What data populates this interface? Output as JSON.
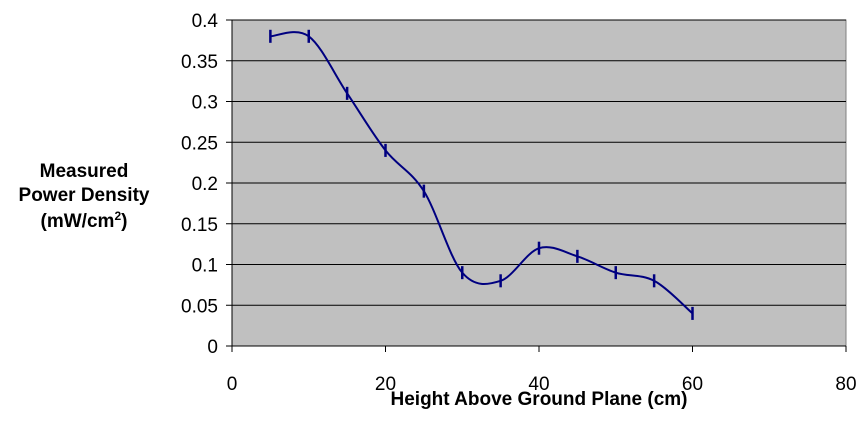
{
  "chart_data": {
    "type": "line",
    "xlabel": "Height Above Ground Plane (cm)",
    "ylabel": {
      "line1": "Measured",
      "line2": "Power Density",
      "line3_prefix": "(mW/cm",
      "line3_sup": "2",
      "line3_suffix": ")"
    },
    "xlim": [
      0,
      80
    ],
    "ylim": [
      0,
      0.4
    ],
    "xticks": [
      0,
      20,
      40,
      60,
      80
    ],
    "xtick_labels": [
      "0",
      "20",
      "40",
      "60",
      "80"
    ],
    "yticks": [
      0,
      0.05,
      0.1,
      0.15,
      0.2,
      0.25,
      0.3,
      0.35,
      0.4
    ],
    "ytick_labels": [
      "0",
      "0.05",
      "0.1",
      "0.15",
      "0.2",
      "0.25",
      "0.3",
      "0.35",
      "0.4"
    ],
    "grid": "horizontal",
    "legend": "none",
    "series": [
      {
        "x": [
          5,
          10,
          15,
          20,
          25,
          30,
          35,
          40,
          45,
          50,
          55,
          60
        ],
        "y": [
          0.38,
          0.38,
          0.31,
          0.24,
          0.19,
          0.09,
          0.08,
          0.12,
          0.11,
          0.09,
          0.08,
          0.04
        ],
        "error": 0.008,
        "smooth": true
      }
    ],
    "colors": {
      "plot_background": "#c0c0c0",
      "series": "#000080",
      "gridline": "#000000",
      "border": "#808080"
    }
  }
}
